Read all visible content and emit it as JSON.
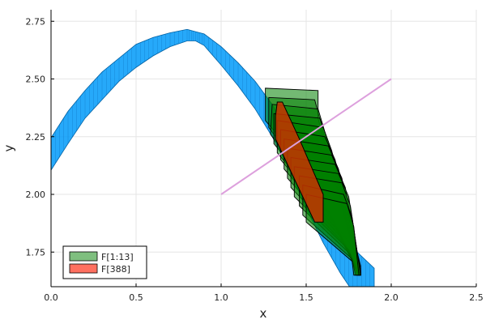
{
  "chart_data": {
    "type": "scatter",
    "title": "",
    "xlabel": "x",
    "ylabel": "y",
    "xlim": [
      0.0,
      2.5
    ],
    "ylim": [
      1.6,
      2.8
    ],
    "xticks": [
      0.0,
      0.5,
      1.0,
      1.5,
      2.0,
      2.5
    ],
    "xtick_labels": [
      "0.0",
      "0.5",
      "1.0",
      "1.5",
      "2.0",
      "2.5"
    ],
    "yticks": [
      1.75,
      2.0,
      2.25,
      2.5,
      2.75
    ],
    "ytick_labels": [
      "1.75",
      "2.00",
      "2.25",
      "2.50",
      "2.75"
    ],
    "grid": true,
    "legend_position": "bottom-left",
    "colors": {
      "band": "#009af9",
      "green": "#008000",
      "red": "#c83200",
      "line": "#dda0dd",
      "legend_green": "#7fbf7f",
      "legend_red": "#ff7060"
    },
    "series": [
      {
        "name": "F[1:13]",
        "kind": "polygons",
        "polygons": [
          [
            [
              1.26,
              2.32
            ],
            [
              1.26,
              2.46
            ],
            [
              1.57,
              2.45
            ],
            [
              1.57,
              2.33
            ],
            [
              1.78,
              1.75
            ],
            [
              1.78,
              1.72
            ],
            [
              1.61,
              1.95
            ],
            [
              1.56,
              2.06
            ]
          ],
          [
            [
              1.28,
              2.29
            ],
            [
              1.28,
              2.42
            ],
            [
              1.55,
              2.41
            ],
            [
              1.59,
              2.3
            ],
            [
              1.79,
              1.73
            ],
            [
              1.79,
              1.68
            ],
            [
              1.59,
              1.98
            ]
          ],
          [
            [
              1.29,
              2.26
            ],
            [
              1.3,
              2.39
            ],
            [
              1.57,
              2.37
            ],
            [
              1.61,
              2.27
            ],
            [
              1.8,
              1.71
            ],
            [
              1.8,
              1.67
            ],
            [
              1.61,
              1.95
            ]
          ],
          [
            [
              1.31,
              2.22
            ],
            [
              1.31,
              2.35
            ],
            [
              1.58,
              2.33
            ],
            [
              1.63,
              2.23
            ],
            [
              1.81,
              1.7
            ],
            [
              1.81,
              1.66
            ],
            [
              1.63,
              1.93
            ]
          ],
          [
            [
              1.33,
              2.18
            ],
            [
              1.33,
              2.32
            ],
            [
              1.6,
              2.29
            ],
            [
              1.65,
              2.19
            ],
            [
              1.82,
              1.69
            ],
            [
              1.82,
              1.66
            ],
            [
              1.65,
              1.9
            ]
          ],
          [
            [
              1.35,
              2.15
            ],
            [
              1.35,
              2.28
            ],
            [
              1.61,
              2.25
            ],
            [
              1.67,
              2.15
            ],
            [
              1.82,
              1.68
            ],
            [
              1.82,
              1.65
            ],
            [
              1.67,
              1.87
            ]
          ],
          [
            [
              1.37,
              2.11
            ],
            [
              1.37,
              2.24
            ],
            [
              1.63,
              2.21
            ],
            [
              1.69,
              2.11
            ],
            [
              1.82,
              1.67
            ],
            [
              1.82,
              1.65
            ],
            [
              1.69,
              1.84
            ]
          ],
          [
            [
              1.39,
              2.07
            ],
            [
              1.39,
              2.2
            ],
            [
              1.65,
              2.17
            ],
            [
              1.71,
              2.07
            ],
            [
              1.82,
              1.66
            ],
            [
              1.82,
              1.65
            ],
            [
              1.71,
              1.81
            ]
          ],
          [
            [
              1.41,
              2.03
            ],
            [
              1.41,
              2.16
            ],
            [
              1.67,
              2.13
            ],
            [
              1.73,
              2.03
            ],
            [
              1.82,
              1.66
            ],
            [
              1.82,
              1.65
            ],
            [
              1.73,
              1.78
            ]
          ],
          [
            [
              1.43,
              1.99
            ],
            [
              1.43,
              2.12
            ],
            [
              1.69,
              2.09
            ],
            [
              1.75,
              1.99
            ],
            [
              1.82,
              1.65
            ],
            [
              1.81,
              1.65
            ],
            [
              1.75,
              1.76
            ]
          ],
          [
            [
              1.46,
              1.95
            ],
            [
              1.46,
              2.08
            ],
            [
              1.71,
              2.05
            ],
            [
              1.76,
              1.95
            ],
            [
              1.82,
              1.65
            ],
            [
              1.8,
              1.65
            ],
            [
              1.76,
              1.74
            ]
          ],
          [
            [
              1.48,
              1.91
            ],
            [
              1.48,
              2.04
            ],
            [
              1.72,
              2.0
            ],
            [
              1.77,
              1.9
            ],
            [
              1.82,
              1.65
            ],
            [
              1.79,
              1.65
            ],
            [
              1.77,
              1.72
            ]
          ],
          [
            [
              1.5,
              1.88
            ],
            [
              1.5,
              2.0
            ],
            [
              1.74,
              1.96
            ],
            [
              1.78,
              1.86
            ],
            [
              1.81,
              1.65
            ],
            [
              1.78,
              1.65
            ],
            [
              1.77,
              1.71
            ]
          ]
        ]
      },
      {
        "name": "F[388]",
        "kind": "polygons",
        "polygons": [
          [
            [
              1.32,
              2.34
            ],
            [
              1.33,
              2.4
            ],
            [
              1.36,
              2.4
            ],
            [
              1.46,
              2.24
            ],
            [
              1.6,
              2.0
            ],
            [
              1.6,
              1.88
            ],
            [
              1.55,
              1.88
            ],
            [
              1.32,
              2.24
            ]
          ]
        ]
      },
      {
        "name": "",
        "kind": "line",
        "x": [
          1.0,
          2.0
        ],
        "y": [
          2.0,
          2.5
        ]
      },
      {
        "name": "",
        "kind": "band",
        "x_center": [
          0.0,
          0.1,
          0.2,
          0.3,
          0.4,
          0.5,
          0.6,
          0.7,
          0.8,
          0.85,
          0.9,
          1.0,
          1.1,
          1.2,
          1.3,
          1.4,
          1.5,
          1.6,
          1.7,
          1.8,
          1.9
        ],
        "y_center": [
          2.175,
          2.29,
          2.39,
          2.47,
          2.54,
          2.6,
          2.64,
          2.67,
          2.69,
          2.685,
          2.67,
          2.6,
          2.52,
          2.43,
          2.32,
          2.18,
          2.02,
          1.87,
          1.75,
          1.65,
          1.58
        ],
        "half_width": [
          0.07,
          0.07,
          0.06,
          0.06,
          0.05,
          0.05,
          0.04,
          0.03,
          0.025,
          0.02,
          0.025,
          0.04,
          0.05,
          0.06,
          0.07,
          0.07,
          0.08,
          0.08,
          0.09,
          0.1,
          0.1
        ]
      }
    ]
  }
}
